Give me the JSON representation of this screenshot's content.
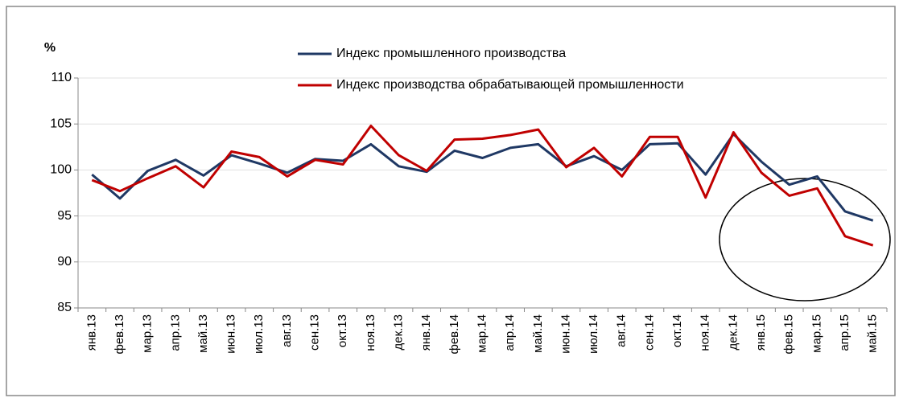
{
  "chart_data": {
    "type": "line",
    "y_label": "%",
    "categories": [
      "янв.13",
      "фев.13",
      "мар.13",
      "апр.13",
      "май.13",
      "июн.13",
      "июл.13",
      "авг.13",
      "сен.13",
      "окт.13",
      "ноя.13",
      "дек.13",
      "янв.14",
      "фев.14",
      "мар.14",
      "апр.14",
      "май.14",
      "июн.14",
      "июл.14",
      "авг.14",
      "сен.14",
      "окт.14",
      "ноя.14",
      "дек.14",
      "янв.15",
      "фев.15",
      "мар.15",
      "апр.15",
      "май.15"
    ],
    "series": [
      {
        "name": "Индекс промышленного производства",
        "color": "#1f3864",
        "values": [
          99.5,
          96.9,
          99.9,
          101.1,
          99.4,
          101.6,
          100.7,
          99.7,
          101.2,
          101.0,
          102.8,
          100.4,
          99.8,
          102.1,
          101.3,
          102.4,
          102.8,
          100.4,
          101.5,
          100.0,
          102.8,
          102.9,
          99.5,
          103.9,
          100.9,
          98.4,
          99.3,
          95.5,
          94.5
        ]
      },
      {
        "name": "Индекс производства обрабатывающей промышленности",
        "color": "#c00000",
        "values": [
          98.9,
          97.7,
          99.1,
          100.4,
          98.1,
          102.0,
          101.4,
          99.3,
          101.1,
          100.6,
          104.8,
          101.6,
          99.9,
          103.3,
          103.4,
          103.8,
          104.4,
          100.3,
          102.4,
          99.3,
          103.6,
          103.6,
          97.0,
          104.1,
          99.7,
          97.2,
          98.0,
          92.8,
          91.8
        ]
      }
    ],
    "ylim": [
      85,
      110
    ],
    "yticks": [
      85,
      90,
      95,
      100,
      105,
      110
    ],
    "grid": true
  }
}
